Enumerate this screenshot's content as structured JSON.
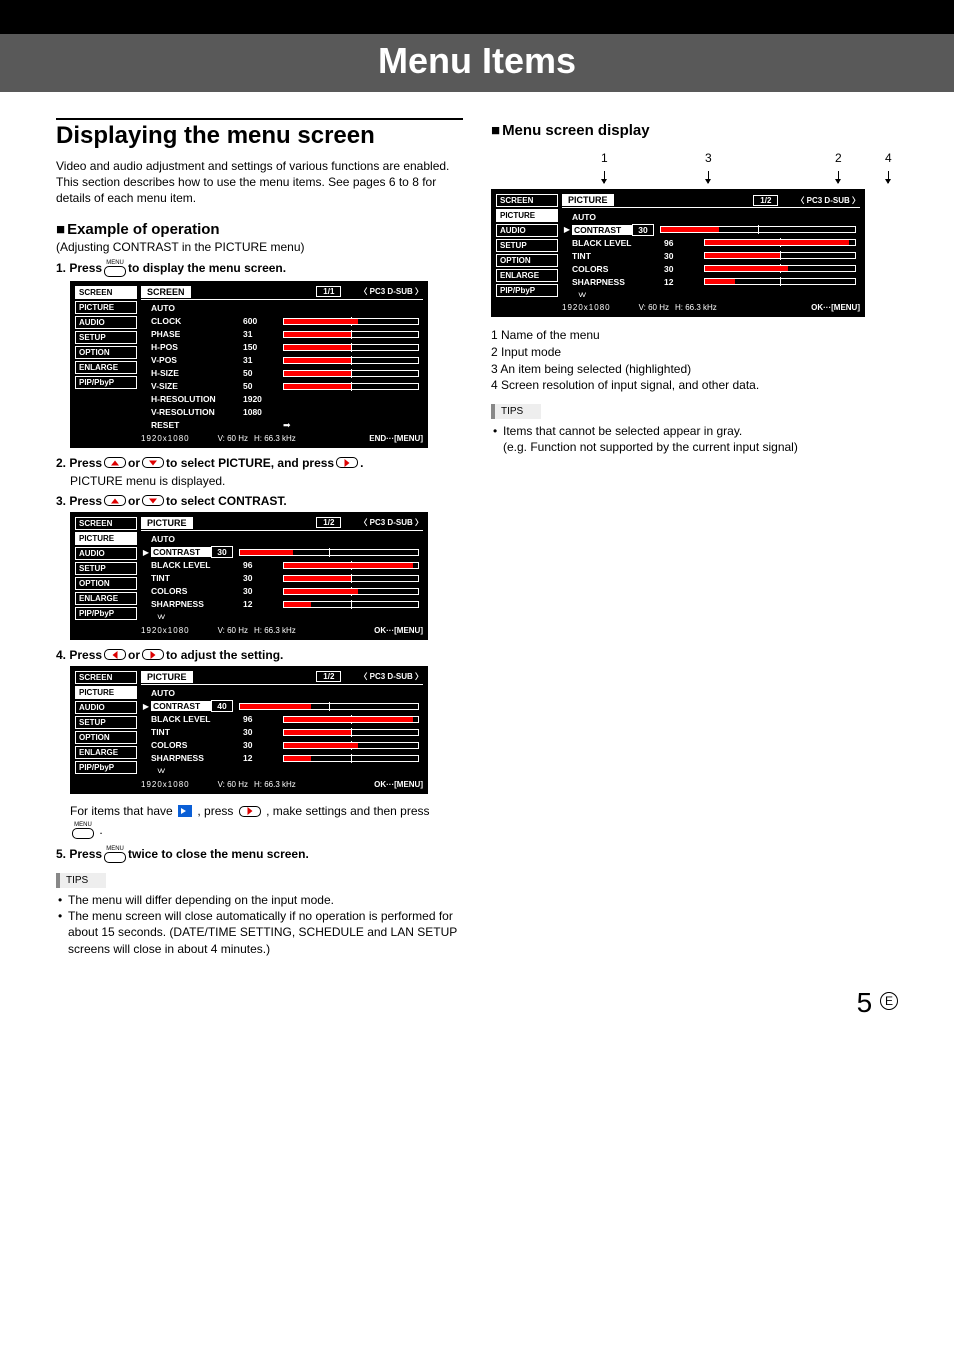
{
  "banner_title": "Menu Items",
  "left": {
    "h1": "Displaying the menu screen",
    "intro": "Video and audio adjustment and settings of various functions are enabled. This section describes how to use the menu items. See pages 6 to 8 for details of each menu item.",
    "h2": "Example of operation",
    "sub": "(Adjusting CONTRAST in the PICTURE menu)",
    "step1_pre": "1.  Press",
    "step1_post": " to display the menu screen.",
    "step2_pre": "2.  Press ",
    "step2_mid": " or ",
    "step2_mid2": " to select PICTURE, and press ",
    "step2_post": ".",
    "step2_body": "PICTURE menu is displayed.",
    "step3_pre": "3.  Press ",
    "step3_mid": " or ",
    "step3_post": " to select CONTRAST.",
    "step4_pre": "4.  Press ",
    "step4_mid": " or ",
    "step4_post": " to adjust the setting.",
    "for_items_pre": "For items that have ",
    "for_items_mid": " , press ",
    "for_items_mid2": ", make settings and then press ",
    "for_items_post": ".",
    "step5_pre": "5.  Press ",
    "step5_post": " twice to close the menu screen.",
    "tips_label": "TIPS",
    "tips": [
      "The menu will differ depending on the input mode.",
      "The menu screen will close automatically if no operation is performed for about 15 seconds. (DATE/TIME SETTING, SCHEDULE and LAN SETUP screens will close in about 4 minutes.)"
    ]
  },
  "right": {
    "h2": "Menu screen display",
    "callouts": {
      "c1": "1",
      "c2": "2",
      "c3": "3",
      "c4": "4"
    },
    "legend": [
      "1  Name of the menu",
      "2  Input mode",
      "3  An item being selected (highlighted)",
      "4  Screen resolution of input signal, and other data."
    ],
    "tips_label": "TIPS",
    "tips": [
      "Items that cannot be selected appear in gray.\n(e.g. Function not supported by the current input signal)"
    ]
  },
  "osd_common": {
    "side": [
      "SCREEN",
      "PICTURE",
      "AUDIO",
      "SETUP",
      "OPTION",
      "ENLARGE",
      "PIP/PbyP"
    ],
    "input": "PC3 D-SUB",
    "res": "1920x1080",
    "vhz": "V: 60 Hz",
    "hhz": "H: 66.3 kHz",
    "end": "END···[MENU]",
    "ok": "OK···[MENU]"
  },
  "osd1": {
    "title": "SCREEN",
    "page": "1/1",
    "active_side": 0,
    "rows": [
      {
        "name": "AUTO",
        "val": "",
        "bar": null
      },
      {
        "name": "CLOCK",
        "val": "600",
        "bar": 55
      },
      {
        "name": "PHASE",
        "val": "31",
        "bar": 50
      },
      {
        "name": "H-POS",
        "val": "150",
        "bar": 50
      },
      {
        "name": "V-POS",
        "val": "31",
        "bar": 50
      },
      {
        "name": "H-SIZE",
        "val": "50",
        "bar": 50
      },
      {
        "name": "V-SIZE",
        "val": "50",
        "bar": 50
      },
      {
        "name": "H-RESOLUTION",
        "val": "1920",
        "bar": null
      },
      {
        "name": "V-RESOLUTION",
        "val": "1080",
        "bar": null
      },
      {
        "name": "RESET",
        "val": "→",
        "bar": null,
        "enter": true
      }
    ]
  },
  "osd2": {
    "title": "PICTURE",
    "page": "1/2",
    "active_side": 1,
    "contrast_val": "30",
    "rows": [
      {
        "name": "AUTO",
        "val": "",
        "bar": null
      },
      {
        "name": "CONTRAST",
        "val": "30",
        "bar": 30,
        "cursor": true,
        "boxed_name": true,
        "boxed_val": true
      },
      {
        "name": "BLACK LEVEL",
        "val": "96",
        "bar": 96
      },
      {
        "name": "TINT",
        "val": "30",
        "bar": 50
      },
      {
        "name": "COLORS",
        "val": "30",
        "bar": 55
      },
      {
        "name": "SHARPNESS",
        "val": "12",
        "bar": 20
      }
    ]
  },
  "osd3": {
    "title": "PICTURE",
    "page": "1/2",
    "active_side": 1,
    "rows": [
      {
        "name": "AUTO",
        "val": "",
        "bar": null
      },
      {
        "name": "CONTRAST",
        "val": "40",
        "bar": 40,
        "cursor": true,
        "boxed_name": true,
        "boxed_val": true
      },
      {
        "name": "BLACK LEVEL",
        "val": "96",
        "bar": 96
      },
      {
        "name": "TINT",
        "val": "30",
        "bar": 50
      },
      {
        "name": "COLORS",
        "val": "30",
        "bar": 55
      },
      {
        "name": "SHARPNESS",
        "val": "12",
        "bar": 20
      }
    ]
  },
  "osd_right": {
    "title": "PICTURE",
    "page": "1/2",
    "active_side": 1,
    "rows": [
      {
        "name": "AUTO",
        "val": "",
        "bar": null
      },
      {
        "name": "CONTRAST",
        "val": "30",
        "bar": 30,
        "cursor": true,
        "boxed_name": true,
        "boxed_val": true
      },
      {
        "name": "BLACK LEVEL",
        "val": "96",
        "bar": 96
      },
      {
        "name": "TINT",
        "val": "30",
        "bar": 50
      },
      {
        "name": "COLORS",
        "val": "30",
        "bar": 55
      },
      {
        "name": "SHARPNESS",
        "val": "12",
        "bar": 20
      }
    ]
  },
  "menu_label": "MENU",
  "pagenum": "5",
  "pagenum_e": "E"
}
